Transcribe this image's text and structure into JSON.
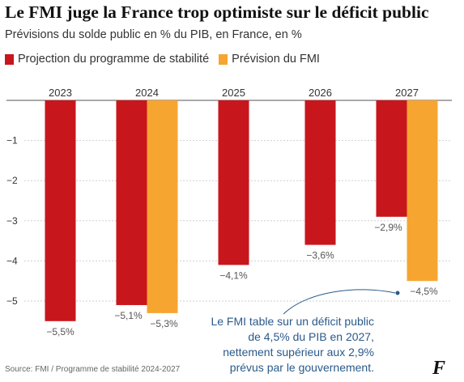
{
  "title": "Le FMI juge la France trop optimiste sur le déficit public",
  "subtitle": "Prévisions du solde public en % du PIB, en France, en %",
  "source": "Source: FMI / Programme de stabilité 2024-2027",
  "logo": "F",
  "annotation": {
    "lines": [
      "Le FMI table sur un déficit public",
      "de 4,5% du PIB en 2027,",
      "nettement supérieur aux 2,9%",
      "prévus par le gouvernement."
    ],
    "color": "#2a5a8a"
  },
  "colors": {
    "series_a": "#c8161d",
    "series_b": "#f6a531",
    "grid": "#cfcfcf",
    "axis_text": "#333333",
    "label_text": "#555555"
  },
  "chart_data": {
    "type": "bar",
    "categories": [
      "2023",
      "2024",
      "2025",
      "2026",
      "2027"
    ],
    "series": [
      {
        "name": "Projection du programme de stabilité",
        "color": "#c8161d",
        "values": [
          -5.5,
          -5.1,
          -4.1,
          -3.6,
          -2.9
        ]
      },
      {
        "name": "Prévision du FMI",
        "color": "#f6a531",
        "values": [
          null,
          -5.3,
          null,
          null,
          -4.5
        ]
      }
    ],
    "data_labels": [
      [
        "−5,5%",
        "−5,1%",
        "−4,1%",
        "−3,6%",
        "−2,9%"
      ],
      [
        null,
        "−5,3%",
        null,
        null,
        "−4,5%"
      ]
    ],
    "yticks": [
      -5,
      -4,
      -3,
      -2,
      -1
    ],
    "ytick_labels": [
      "−5",
      "−4",
      "−3",
      "−2",
      "−1"
    ],
    "ylim": [
      -5.6,
      0
    ],
    "grid": true,
    "legend_position": "top-left"
  }
}
